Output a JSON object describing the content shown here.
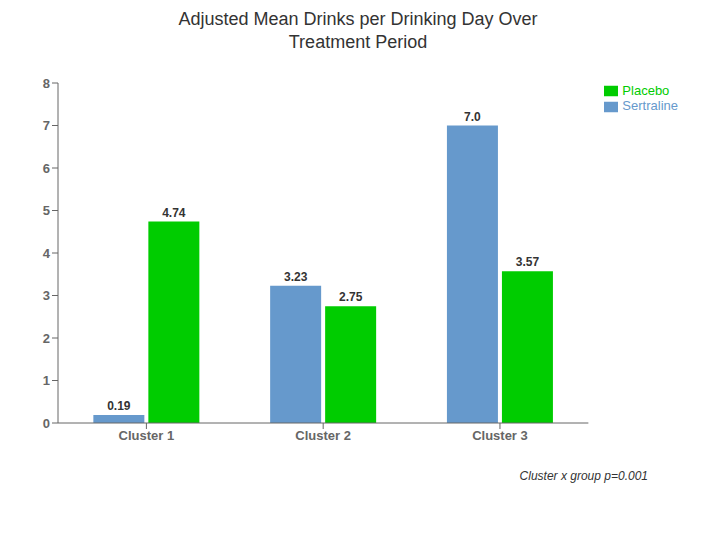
{
  "chart_data": {
    "type": "bar",
    "title": "Adjusted Mean Drinks per Drinking Day Over\nTreatment Period",
    "categories": [
      "Cluster 1",
      "Cluster 2",
      "Cluster 3"
    ],
    "series": [
      {
        "name": "Sertraline",
        "color": "#6699CC",
        "values": [
          0.19,
          3.23,
          7.0
        ],
        "value_labels": [
          "0.19",
          "3.23",
          "7.0"
        ]
      },
      {
        "name": "Placebo",
        "color": "#00CC00",
        "values": [
          4.74,
          2.75,
          3.57
        ]
      }
    ],
    "ylim": [
      0,
      8
    ],
    "yticks": [
      0,
      1,
      2,
      3,
      4,
      5,
      6,
      7,
      8
    ],
    "grid": false,
    "legend": "upper right",
    "data_labels": true,
    "annotations": [
      "Cluster x group p=0.001"
    ]
  }
}
